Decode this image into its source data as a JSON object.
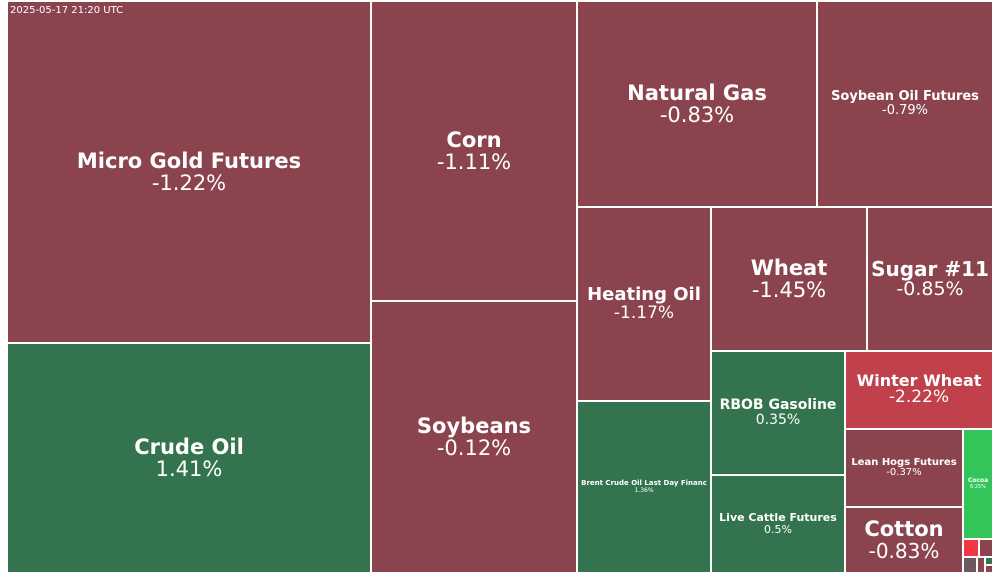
{
  "timestamp": "2025-05-17 21:20 UTC",
  "colors": {
    "mild_down": "#8b444e",
    "strong_down": "#c0414b",
    "vivid_down": "#f23645",
    "mild_up": "#33744e",
    "strong_up": "#33c45a",
    "neutral_small": "#6a5a5f"
  },
  "chart_data": {
    "type": "treemap",
    "title": "",
    "metric": "percent change",
    "items": [
      {
        "name": "Micro Gold Futures",
        "change_pct": -1.22,
        "label": "-1.22%"
      },
      {
        "name": "Crude Oil",
        "change_pct": 1.41,
        "label": "1.41%"
      },
      {
        "name": "Corn",
        "change_pct": -1.11,
        "label": "-1.11%"
      },
      {
        "name": "Soybeans",
        "change_pct": -0.12,
        "label": "-0.12%"
      },
      {
        "name": "Natural Gas",
        "change_pct": -0.83,
        "label": "-0.83%"
      },
      {
        "name": "Soybean Oil Futures",
        "change_pct": -0.79,
        "label": "-0.79%"
      },
      {
        "name": "Heating Oil",
        "change_pct": -1.17,
        "label": "-1.17%"
      },
      {
        "name": "Wheat",
        "change_pct": -1.45,
        "label": "-1.45%"
      },
      {
        "name": "Sugar #11",
        "change_pct": -0.85,
        "label": "-0.85%"
      },
      {
        "name": "Brent Crude Oil Last Day Financ",
        "change_pct": 1.36,
        "label": "1.36%"
      },
      {
        "name": "RBOB Gasoline",
        "change_pct": 0.35,
        "label": "0.35%"
      },
      {
        "name": "Winter Wheat",
        "change_pct": -2.22,
        "label": "-2.22%"
      },
      {
        "name": "Live Cattle Futures",
        "change_pct": 0.5,
        "label": "0.5%"
      },
      {
        "name": "Lean Hogs Futures",
        "change_pct": -0.37,
        "label": "-0.37%"
      },
      {
        "name": "Cotton",
        "change_pct": -0.83,
        "label": "-0.83%"
      },
      {
        "name": "Cocoa",
        "change_pct": 6.25,
        "label": "6.25%"
      }
    ]
  }
}
